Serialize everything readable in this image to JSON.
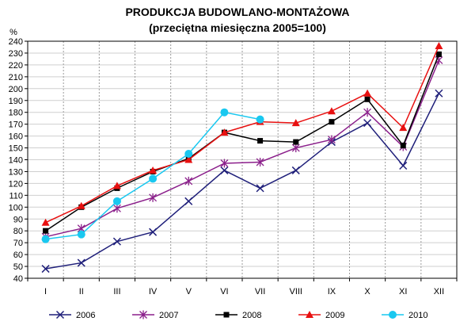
{
  "chart_data": {
    "type": "line",
    "title": "PRODUKCJA BUDOWLANO-MONTAŻOWA",
    "subtitle": "(przeciętna miesięczna 2005=100)",
    "ylabel": "%",
    "xlabel": "",
    "ylim": [
      40,
      240
    ],
    "ytick_step": 10,
    "grid": true,
    "legend_position": "bottom",
    "categories": [
      "I",
      "II",
      "III",
      "IV",
      "V",
      "VI",
      "VII",
      "VIII",
      "IX",
      "X",
      "XI",
      "XII"
    ],
    "series": [
      {
        "name": "2006",
        "color": "#1f1f7a",
        "marker": "x",
        "values": [
          48,
          53,
          71,
          79,
          105,
          131,
          116,
          131,
          155,
          171,
          135,
          196
        ]
      },
      {
        "name": "2007",
        "color": "#8b1f8b",
        "marker": "star",
        "values": [
          75,
          82,
          99,
          108,
          122,
          137,
          138,
          150,
          157,
          180,
          151,
          224
        ]
      },
      {
        "name": "2008",
        "color": "#000000",
        "marker": "square",
        "values": [
          80,
          100,
          116,
          130,
          141,
          163,
          156,
          155,
          172,
          191,
          152,
          229
        ]
      },
      {
        "name": "2009",
        "color": "#e81010",
        "marker": "triangle",
        "values": [
          87,
          101,
          118,
          131,
          140,
          163,
          172,
          171,
          181,
          196,
          167,
          236
        ]
      },
      {
        "name": "2010",
        "color": "#19c8f0",
        "marker": "circle",
        "values": [
          73,
          77,
          105,
          124,
          145,
          180,
          174,
          null,
          null,
          null,
          null,
          null
        ]
      }
    ]
  }
}
